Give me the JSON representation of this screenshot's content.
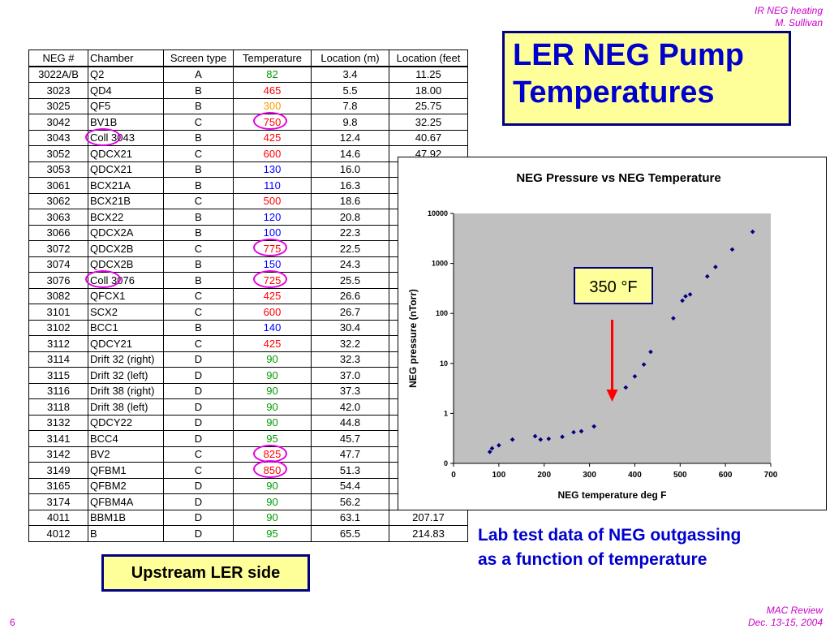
{
  "header": {
    "line1": "IR NEG heating",
    "line2": "M. Sullivan"
  },
  "footer": {
    "page": "6",
    "event": "MAC Review",
    "dates": "Dec. 13-15, 2004"
  },
  "title": {
    "line1": "LER NEG Pump",
    "line2": "Temperatures"
  },
  "table": {
    "headers": [
      "NEG #",
      "Chamber",
      "Screen type",
      "Temperature",
      "Location (m)",
      "Location (feet"
    ],
    "rows": [
      {
        "neg": "3022A/B",
        "chamber": "Q2",
        "screen": "A",
        "temp": "82",
        "loc_m": "3.4",
        "loc_ft": "11.25",
        "tcolor": "#009900"
      },
      {
        "neg": "3023",
        "chamber": "QD4",
        "screen": "B",
        "temp": "465",
        "loc_m": "5.5",
        "loc_ft": "18.00",
        "tcolor": "#ff0000"
      },
      {
        "neg": "3025",
        "chamber": "QF5",
        "screen": "B",
        "temp": "300",
        "loc_m": "7.8",
        "loc_ft": "25.75",
        "tcolor": "#ff9900"
      },
      {
        "neg": "3042",
        "chamber": "BV1B",
        "screen": "C",
        "temp": "750",
        "loc_m": "9.8",
        "loc_ft": "32.25",
        "tcolor": "#ff0000",
        "circle": true
      },
      {
        "neg": "3043",
        "chamber": "Coll 3043",
        "screen": "B",
        "temp": "425",
        "loc_m": "12.4",
        "loc_ft": "40.67",
        "tcolor": "#ff0000",
        "circle_chamber": true
      },
      {
        "neg": "3052",
        "chamber": "QDCX21",
        "screen": "C",
        "temp": "600",
        "loc_m": "14.6",
        "loc_ft": "47.92",
        "tcolor": "#ff0000"
      },
      {
        "neg": "3053",
        "chamber": "QDCX21",
        "screen": "B",
        "temp": "130",
        "loc_m": "16.0",
        "loc_ft": "",
        "tcolor": "#0000ff"
      },
      {
        "neg": "3061",
        "chamber": "BCX21A",
        "screen": "B",
        "temp": "110",
        "loc_m": "16.3",
        "loc_ft": "",
        "tcolor": "#0000ff"
      },
      {
        "neg": "3062",
        "chamber": "BCX21B",
        "screen": "C",
        "temp": "500",
        "loc_m": "18.6",
        "loc_ft": "",
        "tcolor": "#ff0000"
      },
      {
        "neg": "3063",
        "chamber": "BCX22",
        "screen": "B",
        "temp": "120",
        "loc_m": "20.8",
        "loc_ft": "",
        "tcolor": "#0000ff"
      },
      {
        "neg": "3066",
        "chamber": "QDCX2A",
        "screen": "B",
        "temp": "100",
        "loc_m": "22.3",
        "loc_ft": "",
        "tcolor": "#0000ff"
      },
      {
        "neg": "3072",
        "chamber": "QDCX2B",
        "screen": "C",
        "temp": "775",
        "loc_m": "22.5",
        "loc_ft": "",
        "tcolor": "#ff0000",
        "circle": true
      },
      {
        "neg": "3074",
        "chamber": "QDCX2B",
        "screen": "B",
        "temp": "150",
        "loc_m": "24.3",
        "loc_ft": "",
        "tcolor": "#0000ff"
      },
      {
        "neg": "3076",
        "chamber": "Coll 3076",
        "screen": "B",
        "temp": "725",
        "loc_m": "25.5",
        "loc_ft": "",
        "tcolor": "#ff0000",
        "circle": true,
        "circle_chamber": true
      },
      {
        "neg": "3082",
        "chamber": "QFCX1",
        "screen": "C",
        "temp": "425",
        "loc_m": "26.6",
        "loc_ft": "",
        "tcolor": "#ff0000"
      },
      {
        "neg": "3101",
        "chamber": "SCX2",
        "screen": "C",
        "temp": "600",
        "loc_m": "26.7",
        "loc_ft": "",
        "tcolor": "#ff0000"
      },
      {
        "neg": "3102",
        "chamber": "BCC1",
        "screen": "B",
        "temp": "140",
        "loc_m": "30.4",
        "loc_ft": "",
        "tcolor": "#0000ff"
      },
      {
        "neg": "3112",
        "chamber": "QDCY21",
        "screen": "C",
        "temp": "425",
        "loc_m": "32.2",
        "loc_ft": "",
        "tcolor": "#ff0000"
      },
      {
        "neg": "3114",
        "chamber": "Drift 32 (right)",
        "screen": "D",
        "temp": "90",
        "loc_m": "32.3",
        "loc_ft": "",
        "tcolor": "#009900"
      },
      {
        "neg": "3115",
        "chamber": "Drift 32 (left)",
        "screen": "D",
        "temp": "90",
        "loc_m": "37.0",
        "loc_ft": "",
        "tcolor": "#009900"
      },
      {
        "neg": "3116",
        "chamber": "Drift 38 (right)",
        "screen": "D",
        "temp": "90",
        "loc_m": "37.3",
        "loc_ft": "",
        "tcolor": "#009900"
      },
      {
        "neg": "3118",
        "chamber": "Drift 38 (left)",
        "screen": "D",
        "temp": "90",
        "loc_m": "42.0",
        "loc_ft": "",
        "tcolor": "#009900"
      },
      {
        "neg": "3132",
        "chamber": "QDCY22",
        "screen": "D",
        "temp": "90",
        "loc_m": "44.8",
        "loc_ft": "",
        "tcolor": "#009900"
      },
      {
        "neg": "3141",
        "chamber": "BCC4",
        "screen": "D",
        "temp": "95",
        "loc_m": "45.7",
        "loc_ft": "",
        "tcolor": "#009900"
      },
      {
        "neg": "3142",
        "chamber": "BV2",
        "screen": "C",
        "temp": "825",
        "loc_m": "47.7",
        "loc_ft": "",
        "tcolor": "#ff0000",
        "circle": true
      },
      {
        "neg": "3149",
        "chamber": "QFBM1",
        "screen": "C",
        "temp": "850",
        "loc_m": "51.3",
        "loc_ft": "",
        "tcolor": "#ff0000",
        "circle": true
      },
      {
        "neg": "3165",
        "chamber": "QFBM2",
        "screen": "D",
        "temp": "90",
        "loc_m": "54.4",
        "loc_ft": "",
        "tcolor": "#009900"
      },
      {
        "neg": "3174",
        "chamber": "QFBM4A",
        "screen": "D",
        "temp": "90",
        "loc_m": "56.2",
        "loc_ft": "",
        "tcolor": "#009900"
      },
      {
        "neg": "4011",
        "chamber": "BBM1B",
        "screen": "D",
        "temp": "90",
        "loc_m": "63.1",
        "loc_ft": "207.17",
        "tcolor": "#009900"
      },
      {
        "neg": "4012",
        "chamber": "B",
        "screen": "D",
        "temp": "95",
        "loc_m": "65.5",
        "loc_ft": "214.83",
        "tcolor": "#009900"
      }
    ]
  },
  "chart_data": {
    "type": "scatter",
    "title": "NEG Pressure vs NEG Temperature",
    "xlabel": "NEG temperature deg F",
    "ylabel": "NEG pressure (nTorr)",
    "xlim": [
      0,
      700
    ],
    "xticks": [
      0,
      100,
      200,
      300,
      400,
      500,
      600,
      700
    ],
    "ytick_labels": [
      "0",
      "1",
      "10",
      "100",
      "1000",
      "10000"
    ],
    "log_scale_y": true,
    "grid": false,
    "point_color": "#000080",
    "points": [
      {
        "x": 80,
        "y": 0.17
      },
      {
        "x": 85,
        "y": 0.2
      },
      {
        "x": 100,
        "y": 0.23
      },
      {
        "x": 130,
        "y": 0.3
      },
      {
        "x": 180,
        "y": 0.35
      },
      {
        "x": 192,
        "y": 0.3
      },
      {
        "x": 210,
        "y": 0.31
      },
      {
        "x": 240,
        "y": 0.34
      },
      {
        "x": 265,
        "y": 0.42
      },
      {
        "x": 282,
        "y": 0.44
      },
      {
        "x": 310,
        "y": 0.55
      },
      {
        "x": 380,
        "y": 3.3
      },
      {
        "x": 400,
        "y": 5.5
      },
      {
        "x": 420,
        "y": 9.5
      },
      {
        "x": 435,
        "y": 17
      },
      {
        "x": 485,
        "y": 80
      },
      {
        "x": 505,
        "y": 180
      },
      {
        "x": 512,
        "y": 220
      },
      {
        "x": 522,
        "y": 240
      },
      {
        "x": 560,
        "y": 550
      },
      {
        "x": 578,
        "y": 850
      },
      {
        "x": 615,
        "y": 1900
      },
      {
        "x": 660,
        "y": 4300
      }
    ],
    "annotation": {
      "text": "350 °F",
      "x": 350
    }
  },
  "upstream_label": "Upstream LER side",
  "caption": {
    "line1": "Lab test data of NEG outgassing",
    "line2": "as a function of temperature"
  }
}
